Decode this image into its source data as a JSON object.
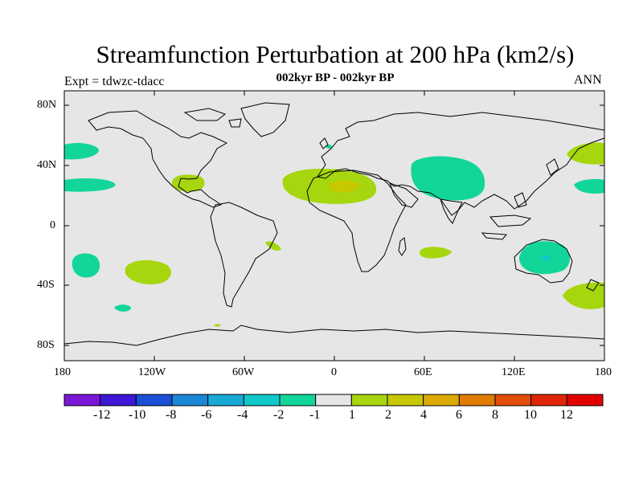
{
  "header": {
    "title": "Streamfunction Perturbation at 200 hPa (km2/s)",
    "subtitle": "002kyr BP - 002kyr BP",
    "experiment": "Expt = tdwzc-tdacc",
    "season": "ANN"
  },
  "map": {
    "lat_labels": [
      "80N",
      "40N",
      "0",
      "40S",
      "80S"
    ],
    "lon_labels": [
      "180",
      "120W",
      "60W",
      "0",
      "60E",
      "120E",
      "180"
    ]
  },
  "colorbar": {
    "labels": [
      "-12",
      "-10",
      "-8",
      "-6",
      "-4",
      "-2",
      "-1",
      "1",
      "2",
      "4",
      "6",
      "8",
      "10",
      "12"
    ],
    "colors": [
      "#7b17d6",
      "#3d17d6",
      "#1a4fd6",
      "#1a86d6",
      "#18aad6",
      "#10c8c8",
      "#12d699",
      "#e6e6e6",
      "#a6d60e",
      "#c7c800",
      "#dcaa00",
      "#e07c00",
      "#e04e0a",
      "#e0260a",
      "#e00000"
    ]
  },
  "chart_data": {
    "type": "map-contour",
    "title": "Streamfunction Perturbation at 200 hPa (km2/s)",
    "subtitle": "002kyr BP - 002kyr BP",
    "levels": [
      -12,
      -10,
      -8,
      -6,
      -4,
      -2,
      -1,
      1,
      2,
      4,
      6,
      8,
      10,
      12
    ],
    "regions": [
      {
        "lon": -170,
        "lat": 50,
        "level": "-2 to -1"
      },
      {
        "lon": -170,
        "lat": 27,
        "level": "-2 to -1"
      },
      {
        "lon": -98,
        "lat": 27,
        "level": "1 to 2"
      },
      {
        "lon": 5,
        "lat": 26,
        "level": "1 to 2"
      },
      {
        "lon": 8,
        "lat": 24,
        "level": "2 to 4"
      },
      {
        "lon": 68,
        "lat": 30,
        "level": "-2 to -1"
      },
      {
        "lon": -44,
        "lat": -13,
        "level": "1 to 2"
      },
      {
        "lon": 58,
        "lat": -18,
        "level": "1 to 2"
      },
      {
        "lon": -168,
        "lat": -27,
        "level": "-2 to -1"
      },
      {
        "lon": -129,
        "lat": -31,
        "level": "1 to 2"
      },
      {
        "lon": -144,
        "lat": -56,
        "level": "-2 to -1"
      },
      {
        "lon": 140,
        "lat": -23,
        "level": "-2 to -1"
      },
      {
        "lon": 166,
        "lat": -47,
        "level": "1 to 2"
      },
      {
        "lon": 168,
        "lat": 49,
        "level": "1 to 2"
      },
      {
        "lon": 171,
        "lat": 25,
        "level": "-2 to -1"
      }
    ]
  }
}
